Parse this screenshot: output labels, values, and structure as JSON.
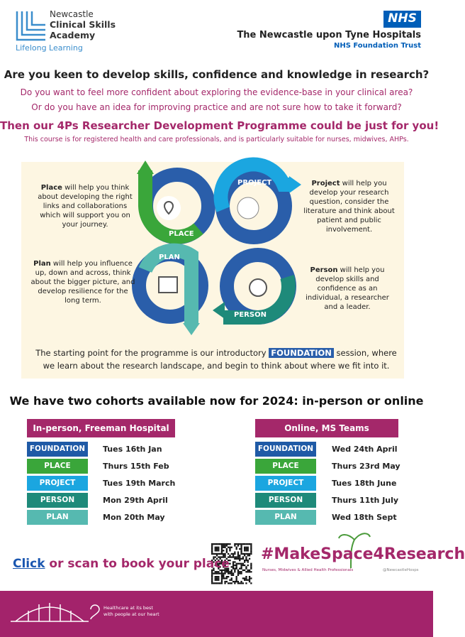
{
  "header": {
    "academy": [
      "Newcastle",
      "Clinical Skills",
      "Academy"
    ],
    "tagline": "Lifelong Learning",
    "nhs": "NHS",
    "trust": "The Newcastle upon Tyne Hospitals",
    "foundation_trust": "NHS Foundation Trust"
  },
  "intro": {
    "question": "Are you keen to develop skills, confidence and knowledge in research?",
    "lines": [
      "Do you want to feel more confident about exploring the evidence-base in your clinical area?",
      "Or do you have an idea for improving practice and are not sure how to take it forward?"
    ],
    "headline": "Then our 4Ps Researcher Development Programme could be just for you!",
    "note": "This course is for registered health and care professionals, and is particularly suitable for nurses, midwives, AHPs."
  },
  "diagram": {
    "arrow_labels": [
      "PLACE",
      "PROJECT",
      "PLAN",
      "PERSON"
    ],
    "descriptions": [
      {
        "lead": "Place",
        "text": " will help you think about developing the right links and collaborations which will support you on your journey."
      },
      {
        "lead": "Project",
        "text": " will help you develop your research question, consider the literature and think about patient and public involvement."
      },
      {
        "lead": "Plan",
        "text": " will help you influence up, down and across, think about the bigger picture, and develop resilience for the long term."
      },
      {
        "lead": "Person",
        "text": " will help you develop skills and confidence as an individual, a researcher and a leader."
      }
    ],
    "starting_point": {
      "before": "The starting point for the programme is our introductory",
      "badge": "FOUNDATION",
      "after": "session, where we learn about the research landscape, and begin to think about where we fit into it."
    }
  },
  "cohorts": {
    "heading": "We have two cohorts available now for 2024: in-person or online",
    "tables": [
      {
        "title": "In-person, Freeman Hospital",
        "rows": [
          [
            "FOUNDATION",
            "Tues 16th Jan"
          ],
          [
            "PLACE",
            "Thurs 15th Feb"
          ],
          [
            "PROJECT",
            "Tues 19th March"
          ],
          [
            "PERSON",
            "Mon 29th April"
          ],
          [
            "PLAN",
            "Mon 20th May"
          ]
        ]
      },
      {
        "title": "Online, MS Teams",
        "rows": [
          [
            "FOUNDATION",
            "Wed 24th April"
          ],
          [
            "PLACE",
            "Thurs 23rd May"
          ],
          [
            "PROJECT",
            "Tues 18th June"
          ],
          [
            "PERSON",
            "Thurs 11th July"
          ],
          [
            "PLAN",
            "Wed 18th Sept"
          ]
        ]
      }
    ]
  },
  "footer": {
    "link": "Click",
    "cta": " or scan to book your place",
    "hashtag": "#MakeSpace4Research",
    "hashtag_sub": "Nurses, Midwives & Allied Health Professionals",
    "handle": "@NewcastleHosps",
    "slogan": [
      "Healthcare at its best",
      "with people at our heart"
    ]
  }
}
